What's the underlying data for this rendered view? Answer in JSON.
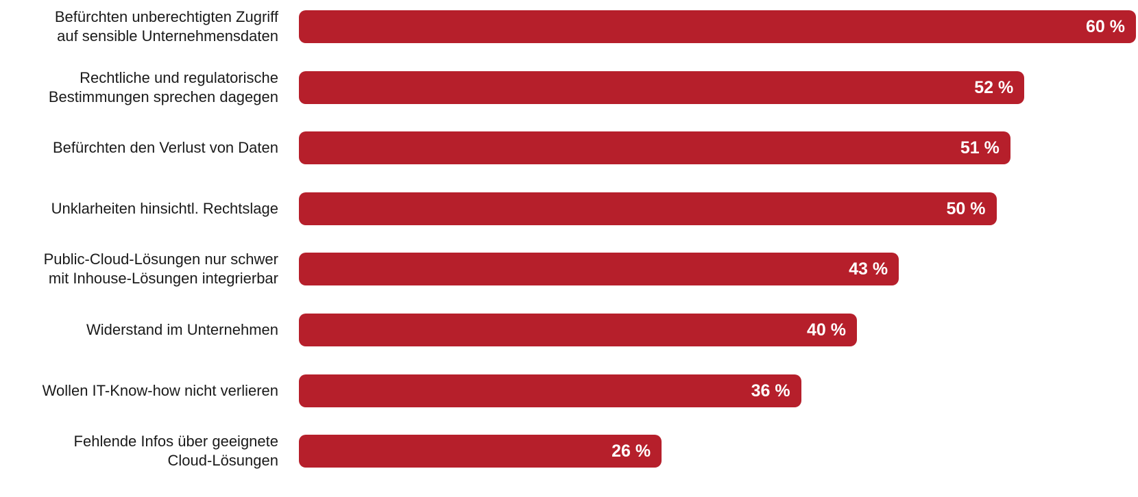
{
  "chart_data": {
    "type": "bar",
    "orientation": "horizontal",
    "title": "",
    "xlabel": "",
    "ylabel": "",
    "xlim": [
      0,
      60
    ],
    "grid": false,
    "bar_color": "#b61f2b",
    "value_label_color": "#ffffff",
    "categories": [
      "Befürchten unberechtigten Zugriff\nauf sensible Unternehmensdaten",
      "Rechtliche und regulatorische\nBestimmungen sprechen dagegen",
      "Befürchten den Verlust von Daten",
      "Unklarheiten hinsichtl. Rechtslage",
      "Public-Cloud-Lösungen nur schwer\nmit Inhouse-Lösungen integrierbar",
      "Widerstand im Unternehmen",
      "Wollen IT-Know-how nicht verlieren",
      "Fehlende Infos über geeignete\nCloud-Lösungen"
    ],
    "values": [
      60,
      52,
      51,
      50,
      43,
      40,
      36,
      26
    ],
    "value_labels": [
      "60 %",
      "52 %",
      "51 %",
      "50 %",
      "43 %",
      "40 %",
      "36 %",
      "26 %"
    ]
  }
}
